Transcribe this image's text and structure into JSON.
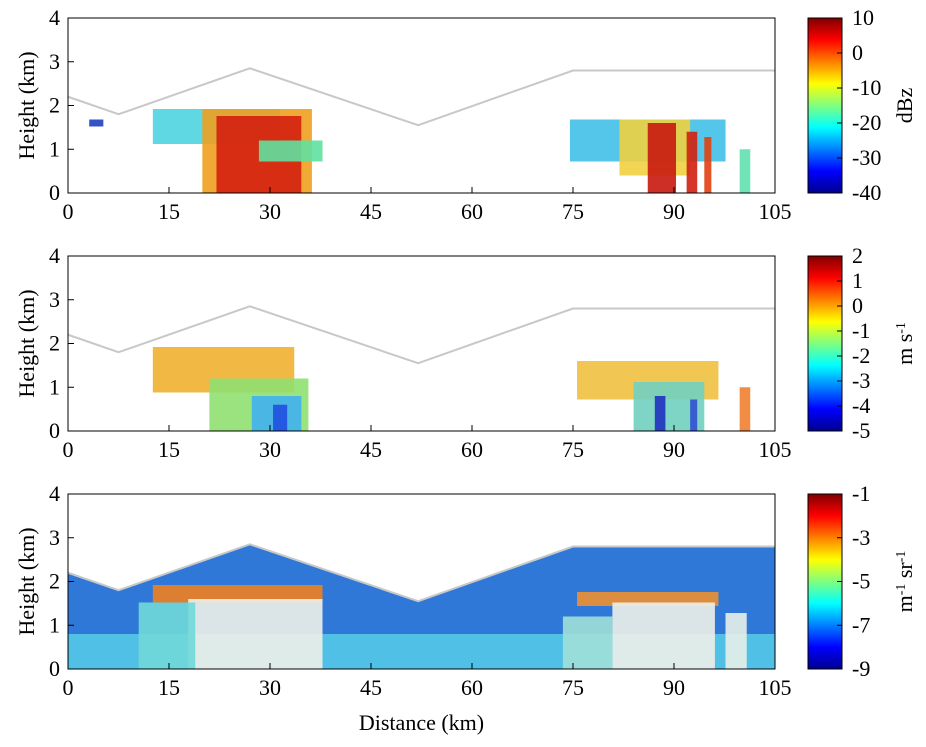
{
  "chart_data": [
    {
      "type": "curtain",
      "ylabel": "Height (km)",
      "xlim": [
        0,
        105
      ],
      "xticks": [
        0,
        15,
        30,
        45,
        60,
        75,
        90,
        105
      ],
      "ylim": [
        0,
        4
      ],
      "yticks": [
        0,
        1,
        2,
        3,
        4
      ],
      "colormap": "jet",
      "colorbar": {
        "lim": [
          -40,
          10
        ],
        "ticks": [
          -40,
          -30,
          -20,
          -10,
          0,
          10
        ],
        "label": [
          {
            "text": "dBz"
          }
        ]
      },
      "track": {
        "color": "#c8c8c8",
        "x": [
          0,
          7.5,
          27,
          52,
          75,
          105
        ],
        "y": [
          2.2,
          1.8,
          2.85,
          1.55,
          2.8,
          2.8
        ]
      }
    },
    {
      "type": "curtain",
      "ylabel": "Height (km)",
      "xlim": [
        0,
        105
      ],
      "xticks": [
        0,
        15,
        30,
        45,
        60,
        75,
        90,
        105
      ],
      "ylim": [
        0,
        4
      ],
      "yticks": [
        0,
        1,
        2,
        3,
        4
      ],
      "colormap": "jet",
      "colorbar": {
        "lim": [
          -5,
          2
        ],
        "ticks": [
          -5,
          -4,
          -3,
          -2,
          -1,
          0,
          1,
          2
        ],
        "label": [
          {
            "text": "m s"
          },
          {
            "text": "-1",
            "sup": true
          }
        ]
      },
      "track": {
        "color": "#c8c8c8",
        "x": [
          0,
          7.5,
          27,
          52,
          75,
          105
        ],
        "y": [
          2.2,
          1.8,
          2.85,
          1.55,
          2.8,
          2.8
        ]
      }
    },
    {
      "type": "curtain",
      "ylabel": "Height (km)",
      "xlabel": "Distance (km)",
      "xlim": [
        0,
        105
      ],
      "xticks": [
        0,
        15,
        30,
        45,
        60,
        75,
        90,
        105
      ],
      "ylim": [
        0,
        4
      ],
      "yticks": [
        0,
        1,
        2,
        3,
        4
      ],
      "colormap": "jet",
      "colorbar": {
        "lim": [
          -9,
          -1
        ],
        "ticks": [
          -9,
          -7,
          -5,
          -3,
          -1
        ],
        "label": [
          {
            "text": "m"
          },
          {
            "text": "-1",
            "sup": true
          },
          {
            "text": " sr"
          },
          {
            "text": "-1",
            "sup": true
          }
        ]
      },
      "track": {
        "color": "#c8c8c8",
        "x": [
          0,
          7.5,
          27,
          52,
          75,
          105
        ],
        "y": [
          2.2,
          1.8,
          2.85,
          1.55,
          2.8,
          2.8
        ]
      }
    }
  ]
}
